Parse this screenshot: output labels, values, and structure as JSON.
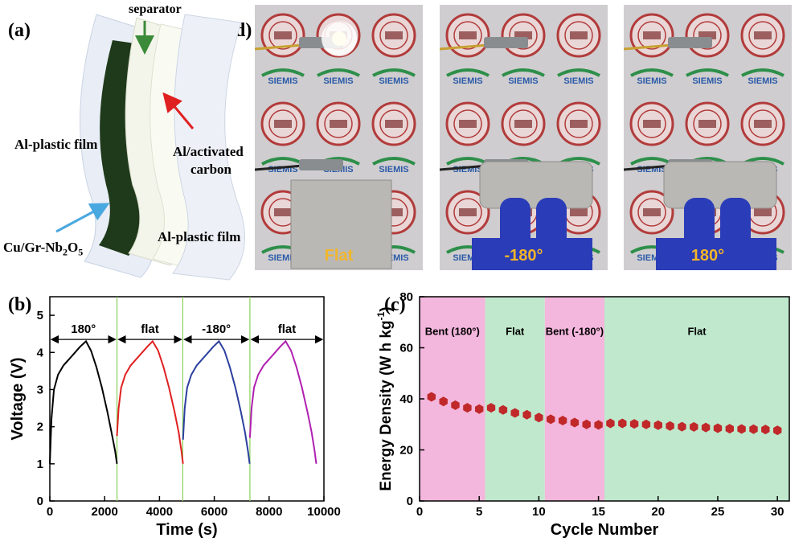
{
  "figure": {
    "panel_labels": {
      "a": "(a)",
      "b": "(b)",
      "c": "(c)",
      "d": "(d)"
    }
  },
  "panel_a": {
    "labels": {
      "separator": "separator",
      "al_plastic_left": "Al-plastic film",
      "al_activated_carbon_line1": "Al/activated",
      "al_activated_carbon_line2": "carbon",
      "cu_gr_nb2o5": "Cu/Gr-Nb",
      "sub2": "2",
      "o": "O",
      "sub5": "5",
      "al_plastic_right": "Al-plastic film"
    },
    "colors": {
      "film": "#e9eef6",
      "electrode_dark": "#1f3a1a",
      "separator": "#f3f4ea",
      "carbon_sheet": "#f9fbf3",
      "arrow_green": "#3a8a3a",
      "arrow_red": "#e02020",
      "arrow_blue": "#4aa8e0"
    }
  },
  "panel_d": {
    "photos": [
      {
        "caption": "Flat",
        "lit": true
      },
      {
        "caption": "-180°",
        "lit": false
      },
      {
        "caption": "180°",
        "lit": false
      }
    ],
    "logo_text": "SIEMIS",
    "colors": {
      "caption": "#f2b52a",
      "glove": "#2a3cb8",
      "pouch": "#b9b8b5"
    }
  },
  "chart_data": [
    {
      "id": "b",
      "type": "line",
      "xlabel": "Time (s)",
      "ylabel": "Voltage (V)",
      "xlim": [
        0,
        10000
      ],
      "ylim": [
        0,
        5.5
      ],
      "xticks": [
        0,
        2000,
        4000,
        6000,
        8000,
        10000
      ],
      "yticks": [
        0,
        1,
        2,
        3,
        4,
        5
      ],
      "tick_labels_x": [
        "0",
        "2000",
        "4000",
        "6000",
        "8000",
        "10000"
      ],
      "tick_labels_y": [
        "0",
        "1",
        "2",
        "3",
        "4",
        "5"
      ],
      "annotations": [
        "180°",
        "flat",
        "-180°",
        "flat"
      ],
      "arrow_level_v": 4.35,
      "dividers_x": [
        2450,
        4850,
        7300
      ],
      "series": [
        {
          "color": "#000000",
          "x": [
            0,
            60,
            150,
            300,
            500,
            800,
            1100,
            1320,
            1500,
            1700,
            1900,
            2100,
            2250,
            2380,
            2450
          ],
          "y": [
            1.0,
            2.2,
            3.0,
            3.4,
            3.65,
            3.9,
            4.15,
            4.3,
            4.05,
            3.6,
            3.05,
            2.4,
            1.85,
            1.35,
            1.0
          ]
        },
        {
          "color": "#e02020",
          "x": [
            2450,
            2510,
            2600,
            2750,
            2950,
            3250,
            3550,
            3750,
            3950,
            4150,
            4350,
            4550,
            4700,
            4800,
            4860
          ],
          "y": [
            1.75,
            2.5,
            3.05,
            3.4,
            3.65,
            3.9,
            4.15,
            4.3,
            4.05,
            3.6,
            3.05,
            2.4,
            1.85,
            1.35,
            1.0
          ]
        },
        {
          "color": "#2b3f9e",
          "x": [
            4860,
            4920,
            5010,
            5160,
            5360,
            5660,
            5960,
            6170,
            6370,
            6570,
            6770,
            6970,
            7120,
            7230,
            7290
          ],
          "y": [
            1.65,
            2.5,
            3.05,
            3.4,
            3.65,
            3.9,
            4.15,
            4.3,
            4.05,
            3.6,
            3.05,
            2.4,
            1.85,
            1.35,
            1.0
          ]
        },
        {
          "color": "#b020b0",
          "x": [
            7300,
            7360,
            7450,
            7600,
            7800,
            8100,
            8400,
            8600,
            8800,
            9000,
            9200,
            9400,
            9550,
            9660,
            9720
          ],
          "y": [
            1.7,
            2.5,
            3.05,
            3.4,
            3.65,
            3.9,
            4.15,
            4.3,
            4.05,
            3.6,
            3.05,
            2.4,
            1.85,
            1.35,
            1.0
          ]
        }
      ]
    },
    {
      "id": "c",
      "type": "scatter",
      "xlabel": "Cycle Number",
      "ylabel_parts": [
        "Energy Density (W h kg",
        "-1",
        ")"
      ],
      "xlim": [
        0,
        31
      ],
      "ylim": [
        0,
        80
      ],
      "xticks": [
        0,
        5,
        10,
        15,
        20,
        25,
        30
      ],
      "yticks": [
        0,
        20,
        40,
        60,
        80
      ],
      "tick_labels_x": [
        "0",
        "5",
        "10",
        "15",
        "20",
        "25",
        "30"
      ],
      "tick_labels_y": [
        "0",
        "20",
        "40",
        "60",
        "80"
      ],
      "regions": [
        {
          "label": "Bent (180°)",
          "x0": 0,
          "x1": 5.5,
          "color": "#f3b6dc"
        },
        {
          "label": "Flat",
          "x0": 5.5,
          "x1": 10.5,
          "color": "#bfe8cc"
        },
        {
          "label": "Bent (-180°)",
          "x0": 10.5,
          "x1": 15.5,
          "color": "#f3b6dc"
        },
        {
          "label": "Flat",
          "x0": 15.5,
          "x1": 31,
          "color": "#bfe8cc"
        }
      ],
      "region_label_level": 65,
      "marker_color": "#c0282a",
      "x": [
        1,
        2,
        3,
        4,
        5,
        6,
        7,
        8,
        9,
        10,
        11,
        12,
        13,
        14,
        15,
        16,
        17,
        18,
        19,
        20,
        21,
        22,
        23,
        24,
        25,
        26,
        27,
        28,
        29,
        30
      ],
      "y": [
        40.8,
        39.0,
        37.5,
        36.5,
        36.0,
        36.5,
        35.7,
        34.5,
        33.8,
        32.7,
        32.0,
        31.5,
        30.7,
        30.0,
        29.8,
        30.4,
        30.4,
        30.2,
        30.0,
        29.7,
        29.4,
        29.1,
        29.0,
        28.8,
        28.5,
        28.3,
        28.2,
        28.1,
        28.0,
        27.7
      ]
    }
  ]
}
